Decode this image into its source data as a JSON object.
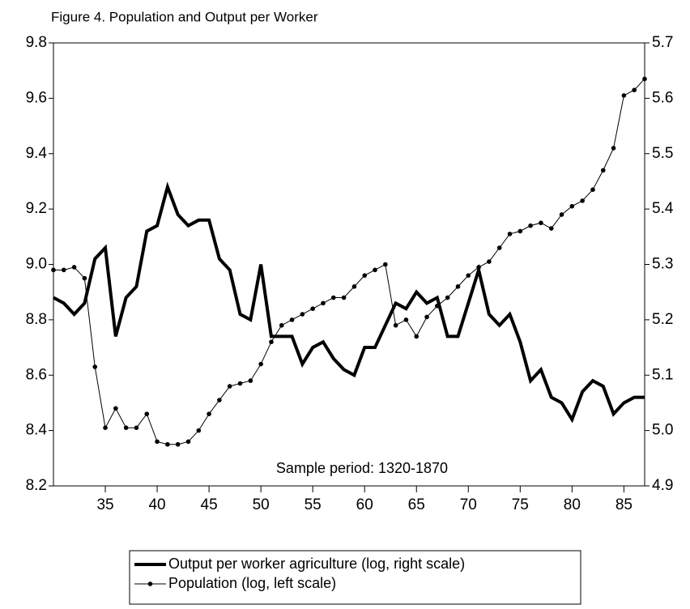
{
  "chart_data": {
    "type": "line",
    "title": "Figure 4. Population and Output per Worker",
    "annotation": "Sample period: 1320-1870",
    "x": [
      30,
      31,
      32,
      33,
      34,
      35,
      36,
      37,
      38,
      39,
      40,
      41,
      42,
      43,
      44,
      45,
      46,
      47,
      48,
      49,
      50,
      51,
      52,
      53,
      54,
      55,
      56,
      57,
      58,
      59,
      60,
      61,
      62,
      63,
      64,
      65,
      66,
      67,
      68,
      69,
      70,
      71,
      72,
      73,
      74,
      75,
      76,
      77,
      78,
      79,
      80,
      81,
      82,
      83,
      84,
      85,
      86,
      87
    ],
    "xlim": [
      30,
      87
    ],
    "xticks": [
      35,
      40,
      45,
      50,
      55,
      60,
      65,
      70,
      75,
      80,
      85
    ],
    "ylim": [
      8.2,
      9.8
    ],
    "yticks": [
      8.2,
      8.4,
      8.6,
      8.8,
      {
        "value": 9,
        "label": "9.0"
      },
      9.2,
      9.4,
      9.6,
      9.8
    ],
    "y2lim": [
      4.9,
      5.7
    ],
    "y2ticks": [
      4.9,
      {
        "value": 5,
        "label": "5.0"
      },
      5.1,
      5.2,
      5.3,
      5.4,
      5.5,
      5.6,
      5.7
    ],
    "grid": false,
    "series": [
      {
        "name": "Output per worker agriculture (log, right scale)",
        "color": "#000000",
        "axis": "y2",
        "line_width": 4,
        "markers": false,
        "values": [
          5.24,
          5.23,
          5.21,
          5.23,
          5.31,
          5.33,
          5.17,
          5.24,
          5.26,
          5.36,
          5.37,
          5.44,
          5.39,
          5.37,
          5.38,
          5.38,
          5.31,
          5.29,
          5.21,
          5.2,
          5.3,
          5.17,
          5.17,
          5.17,
          5.12,
          5.15,
          5.16,
          5.13,
          5.11,
          5.1,
          5.15,
          5.15,
          5.19,
          5.23,
          5.22,
          5.25,
          5.23,
          5.24,
          5.17,
          5.17,
          5.23,
          5.29,
          5.21,
          5.19,
          5.21,
          5.16,
          5.09,
          5.11,
          5.06,
          5.05,
          5.02,
          5.07,
          5.09,
          5.08,
          5.03,
          5.05,
          5.06,
          5.06
        ]
      },
      {
        "name": "Population (log, left scale)",
        "color": "#000000",
        "line_width": 1,
        "markers": true,
        "values": [
          8.98,
          8.98,
          8.99,
          8.95,
          8.63,
          8.41,
          8.48,
          8.41,
          8.41,
          8.46,
          8.36,
          8.35,
          8.35,
          8.36,
          8.4,
          8.46,
          8.51,
          8.56,
          8.57,
          8.58,
          8.64,
          8.72,
          8.78,
          8.8,
          8.82,
          8.84,
          8.86,
          8.88,
          8.88,
          8.92,
          8.96,
          8.98,
          9.0,
          8.78,
          8.8,
          8.74,
          8.81,
          8.85,
          8.88,
          8.92,
          8.96,
          8.99,
          9.01,
          9.06,
          9.11,
          9.12,
          9.14,
          9.15,
          9.13,
          9.18,
          9.21,
          9.23,
          9.27,
          9.34,
          9.42,
          9.61,
          9.63,
          9.67
        ]
      }
    ]
  }
}
